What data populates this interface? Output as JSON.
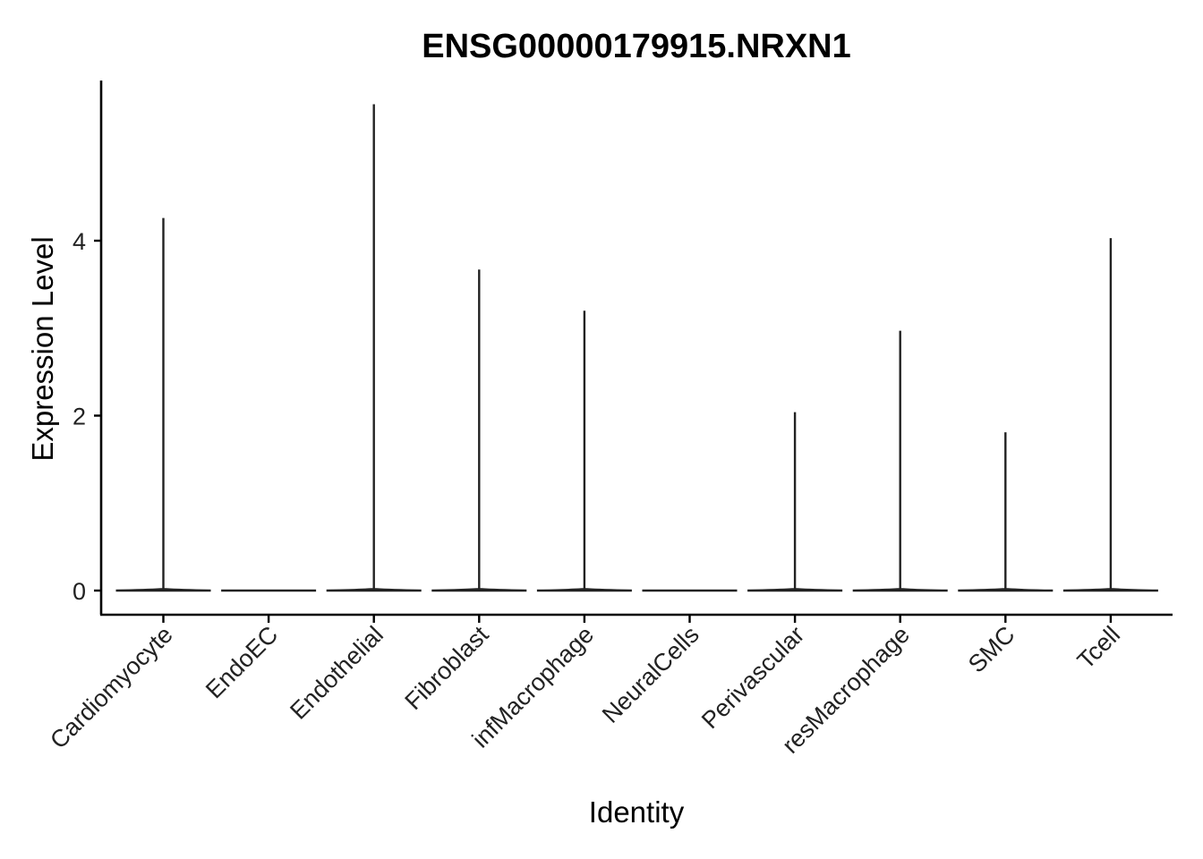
{
  "chart_data": {
    "type": "violin",
    "title": "ENSG00000179915.NRXN1",
    "xlabel": "Identity",
    "ylabel": "Expression Level",
    "categories": [
      "Cardiomyocyte",
      "EndoEC",
      "Endothelial",
      "Fibroblast",
      "infMacrophage",
      "NeuralCells",
      "Perivascular",
      "resMacrophage",
      "SMC",
      "Tcell"
    ],
    "max_values": [
      4.26,
      0,
      5.56,
      3.67,
      3.2,
      0,
      2.04,
      2.97,
      1.81,
      4.03
    ],
    "yticks": [
      0,
      2,
      4
    ],
    "ytick_labels": [
      "0",
      "2",
      "4"
    ],
    "ylim": [
      -0.28,
      5.84
    ],
    "grid": false,
    "legend": "none"
  }
}
